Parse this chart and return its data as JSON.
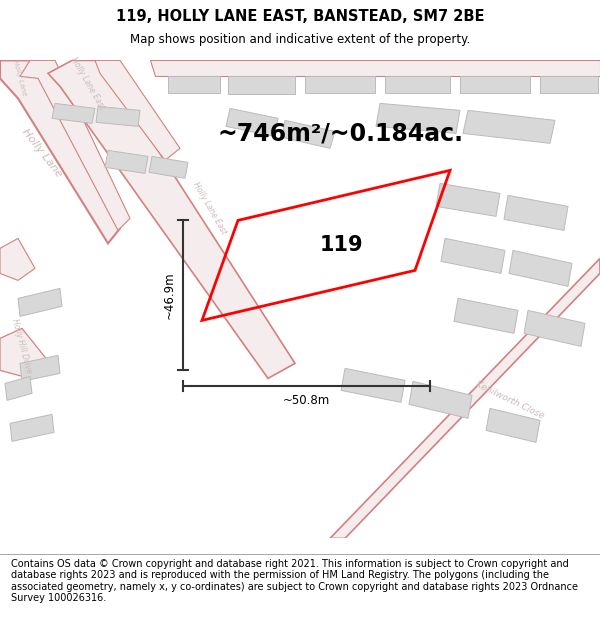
{
  "title": "119, HOLLY LANE EAST, BANSTEAD, SM7 2BE",
  "subtitle": "Map shows position and indicative extent of the property.",
  "area_text": "~746m²/~0.184ac.",
  "property_number": "119",
  "dim_vertical": "~46.9m",
  "dim_horizontal": "~50.8m",
  "footer": "Contains OS data © Crown copyright and database right 2021. This information is subject to Crown copyright and database rights 2023 and is reproduced with the permission of HM Land Registry. The polygons (including the associated geometry, namely x, y co-ordinates) are subject to Crown copyright and database rights 2023 Ordnance Survey 100026316.",
  "road_color": "#d48080",
  "road_fill": "#f5eded",
  "building_fill": "#d8d8d8",
  "building_edge": "#bbbbbb",
  "property_color": "#ff0000",
  "dim_color": "#333333",
  "label_color": "#ccbbbb",
  "title_fontsize": 10.5,
  "subtitle_fontsize": 8.5,
  "area_fontsize": 17,
  "prop_num_fontsize": 15,
  "dim_fontsize": 8.5,
  "road_label_fontsize": 7,
  "footer_fontsize": 7.0
}
